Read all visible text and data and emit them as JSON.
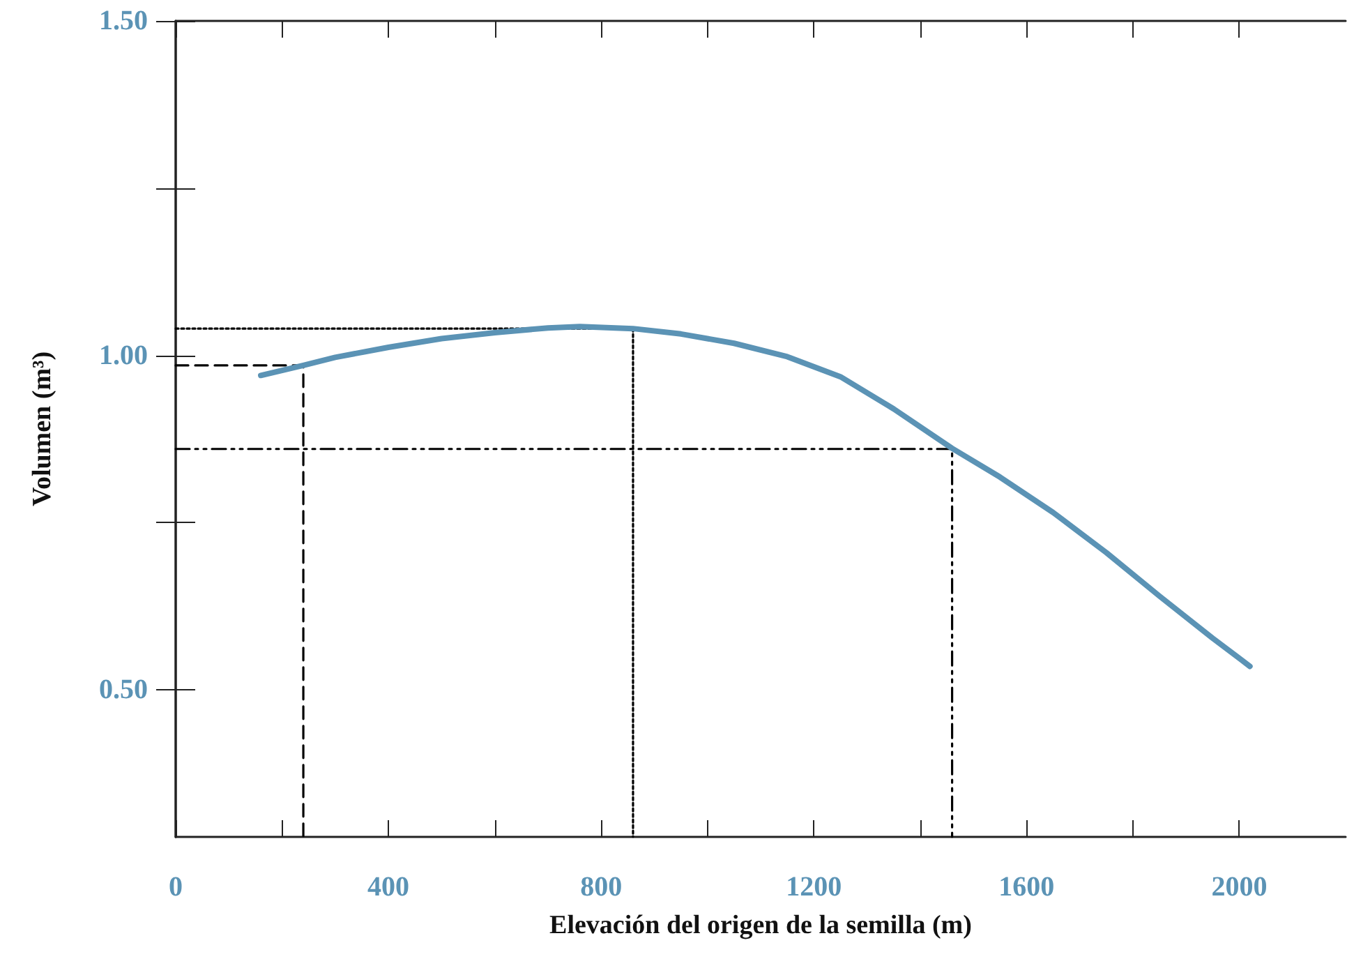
{
  "chart_data": {
    "type": "line",
    "xlabel": "Elevación del origen de la semilla (m)",
    "ylabel": "Volumen (m³)",
    "xlim": [
      0,
      2200
    ],
    "ylim": [
      0.28,
      1.5
    ],
    "xticks": [
      0,
      {
        "value": 200,
        "label": null
      },
      400,
      {
        "value": 600,
        "label": null
      },
      800,
      {
        "value": 1000,
        "label": null
      },
      1200,
      {
        "value": 1400,
        "label": null
      },
      1600,
      {
        "value": 1800,
        "label": null
      },
      2000
    ],
    "yticks": [
      {
        "value": 0.5,
        "label": "0.50"
      },
      {
        "value": 0.75,
        "label": null
      },
      {
        "value": 1.0,
        "label": "1.00"
      },
      {
        "value": 1.25,
        "label": null
      },
      {
        "value": 1.5,
        "label": "1.50"
      }
    ],
    "grid": false,
    "marker": "none",
    "series": [
      {
        "color": "#000000",
        "line_style": "dotted",
        "x": [
          0,
          860,
          860
        ],
        "values": [
          1.04,
          1.04,
          0.28
        ]
      },
      {
        "color": "#000000",
        "line_style": "dashed",
        "x": [
          0,
          240,
          240
        ],
        "values": [
          0.985,
          0.985,
          0.28
        ]
      },
      {
        "color": "#000000",
        "line_style": "dashdot",
        "x": [
          0,
          1460,
          1460
        ],
        "values": [
          0.86,
          0.86,
          0.28
        ]
      },
      {
        "color": "#5b93b5",
        "line_style": "solid",
        "x": [
          160,
          240,
          300,
          400,
          500,
          600,
          700,
          760,
          860,
          950,
          1050,
          1150,
          1250,
          1350,
          1460,
          1550,
          1650,
          1750,
          1850,
          1950,
          2020
        ],
        "values": [
          0.97,
          0.985,
          0.997,
          1.012,
          1.025,
          1.034,
          1.041,
          1.043,
          1.04,
          1.032,
          1.018,
          0.998,
          0.968,
          0.92,
          0.861,
          0.818,
          0.765,
          0.705,
          0.64,
          0.577,
          0.535
        ]
      }
    ]
  }
}
